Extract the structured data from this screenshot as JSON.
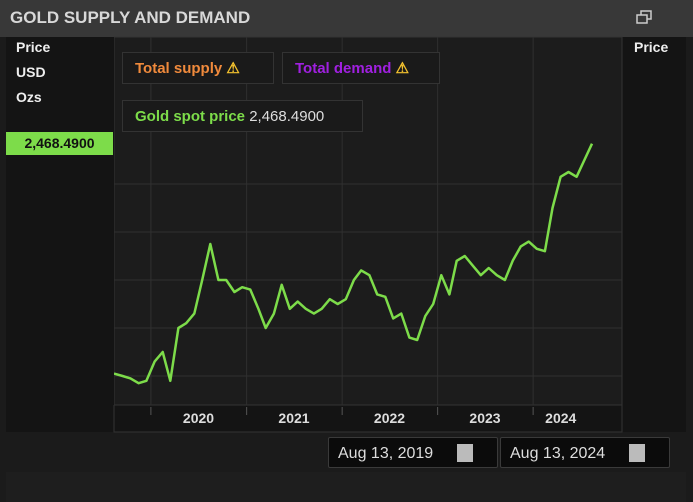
{
  "header": {
    "title": "GOLD SUPPLY AND DEMAND",
    "restore_icon": "window-restore-icon"
  },
  "left_axis": {
    "labels": [
      "Price",
      "USD",
      "Ozs"
    ],
    "current_value": "2,468.4900"
  },
  "right_axis": {
    "label": "Price"
  },
  "legend": {
    "supply": "Total supply",
    "demand": "Total demand",
    "spot_label": "Gold spot price",
    "spot_value": "2,468.4900",
    "warning_icon": "warning-icon"
  },
  "colors": {
    "supply": "#f08a3c",
    "demand": "#a020e0",
    "spot": "#7ddc4a"
  },
  "date_range": {
    "start": "Aug 13, 2019",
    "end": "Aug 13, 2024",
    "icon": "calendar-icon"
  },
  "chart_data": {
    "type": "line",
    "yticks": [
      "1,500",
      "1,700",
      "1,900",
      "2,100",
      "2,300"
    ],
    "ytick_values": [
      1500,
      1700,
      1900,
      2100,
      2300
    ],
    "xticks": [
      "2020",
      "2021",
      "2022",
      "2023",
      "2024"
    ],
    "xlim": [
      "2019-08-13",
      "2024-08-13"
    ],
    "ylim": [
      1410,
      2540
    ],
    "grid": true,
    "series": [
      {
        "x": [
          "2019-08",
          "2019-09",
          "2019-10",
          "2019-11",
          "2019-12",
          "2020-01",
          "2020-02",
          "2020-03",
          "2020-04",
          "2020-05",
          "2020-06",
          "2020-07",
          "2020-08",
          "2020-09",
          "2020-10",
          "2020-11",
          "2020-12",
          "2021-01",
          "2021-02",
          "2021-03",
          "2021-04",
          "2021-05",
          "2021-06",
          "2021-07",
          "2021-08",
          "2021-09",
          "2021-10",
          "2021-11",
          "2021-12",
          "2022-01",
          "2022-02",
          "2022-03",
          "2022-04",
          "2022-05",
          "2022-06",
          "2022-07",
          "2022-08",
          "2022-09",
          "2022-10",
          "2022-11",
          "2022-12",
          "2023-01",
          "2023-02",
          "2023-03",
          "2023-04",
          "2023-05",
          "2023-06",
          "2023-07",
          "2023-08",
          "2023-09",
          "2023-10",
          "2023-11",
          "2023-12",
          "2024-01",
          "2024-02",
          "2024-03",
          "2024-04",
          "2024-05",
          "2024-06",
          "2024-07",
          "2024-08"
        ],
        "values": [
          1510,
          1500,
          1490,
          1470,
          1480,
          1560,
          1600,
          1480,
          1700,
          1720,
          1760,
          1900,
          2050,
          1900,
          1900,
          1850,
          1870,
          1860,
          1780,
          1700,
          1760,
          1880,
          1780,
          1810,
          1780,
          1760,
          1780,
          1820,
          1800,
          1820,
          1900,
          1940,
          1920,
          1840,
          1830,
          1740,
          1760,
          1660,
          1650,
          1750,
          1800,
          1920,
          1840,
          1980,
          2000,
          1960,
          1920,
          1950,
          1920,
          1900,
          1980,
          2040,
          2060,
          2030,
          2020,
          2200,
          2330,
          2350,
          2330,
          2400,
          2468
        ]
      }
    ]
  }
}
